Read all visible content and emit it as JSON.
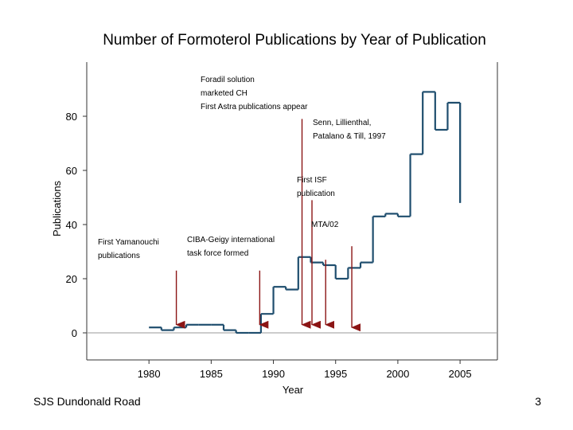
{
  "slide": {
    "footer_left": "SJS Dundonald Road",
    "page_number": "3"
  },
  "colors": {
    "series": "#1f4e6e",
    "arrow": "#8b1515",
    "axis": "#333333"
  },
  "chart_data": {
    "type": "line",
    "step": true,
    "title": "Number of Formoterol Publications by Year of Publication",
    "xlabel": "Year",
    "ylabel": "Publications",
    "xlim": [
      1975,
      2008
    ],
    "ylim": [
      -10,
      100
    ],
    "x_ticks": [
      1980,
      1985,
      1990,
      1995,
      2000,
      2005
    ],
    "y_ticks": [
      0,
      20,
      40,
      60,
      80
    ],
    "series": [
      {
        "name": "Publications",
        "x": [
          1980,
          1981,
          1982,
          1983,
          1984,
          1985,
          1986,
          1987,
          1988,
          1989,
          1990,
          1991,
          1992,
          1993,
          1994,
          1995,
          1996,
          1997,
          1998,
          1999,
          2000,
          2001,
          2002,
          2003,
          2004,
          2005
        ],
        "values": [
          2,
          1,
          2,
          3,
          3,
          3,
          1,
          0,
          0,
          7,
          17,
          16,
          28,
          26,
          25,
          20,
          24,
          26,
          43,
          44,
          43,
          66,
          89,
          75,
          85,
          48
        ]
      }
    ],
    "annotations": [
      {
        "lines": [
          "First Yamanouchi",
          "publications"
        ],
        "arrow_x": 1982.2,
        "arrow_from": 23,
        "arrow_to": 3,
        "arrow_head": true
      },
      {
        "lines": [
          "CIBA-Geigy international",
          "task force formed"
        ],
        "arrow_x": 1988.9,
        "arrow_from": 23,
        "arrow_to": 3,
        "arrow_head": true
      },
      {
        "lines": [
          "Foradil solution",
          "marketed CH",
          "First Astra publications appear"
        ],
        "arrow_x": 1992.3,
        "arrow_from": 79,
        "arrow_to": 3,
        "arrow_head": true
      },
      {
        "lines": [
          "First ISF",
          "publication"
        ],
        "arrow_x": 1993.1,
        "arrow_from": 49,
        "arrow_to": 3,
        "arrow_head": true
      },
      {
        "lines": [
          "MTA/02"
        ],
        "arrow_x": 1994.2,
        "arrow_from": 27,
        "arrow_to": 3,
        "arrow_head": true
      },
      {
        "lines": [
          "Senn, Lillienthal,",
          "Patalano & Till, 1997"
        ],
        "arrow_x": 1996.3,
        "arrow_from": 32,
        "arrow_to": 2,
        "arrow_head": true
      }
    ]
  }
}
